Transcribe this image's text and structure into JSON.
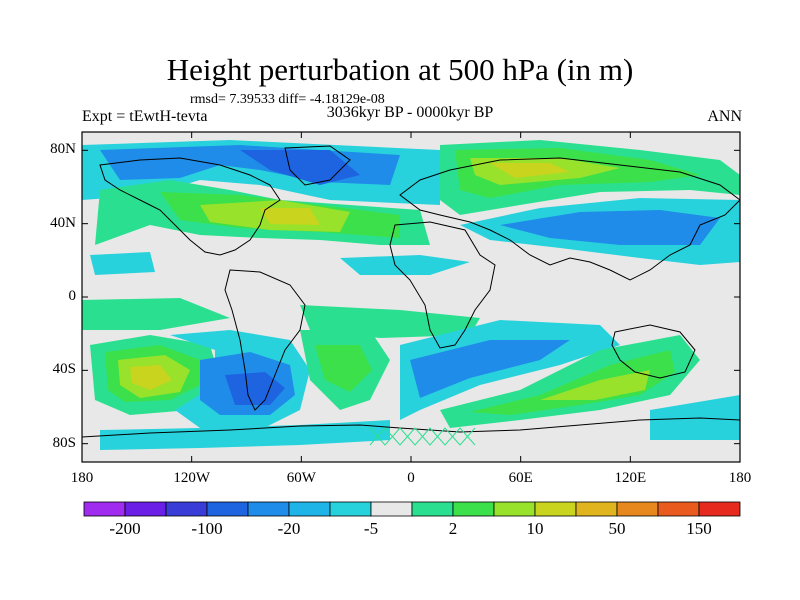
{
  "title": "Height perturbation at 500 hPa (in m)",
  "stats": "rmsd= 7.39533   diff= -4.18129e-08",
  "experiment": "Expt = tEwtH-tevta",
  "period": "3036kyr BP - 0000kyr BP",
  "season": "ANN",
  "lat_labels": [
    "80N",
    "40N",
    "0",
    "40S",
    "80S"
  ],
  "lon_labels": [
    "180",
    "120W",
    "60W",
    "0",
    "60E",
    "120E",
    "180"
  ],
  "colorbar": {
    "labels": [
      "-200",
      "-100",
      "-20",
      "-5",
      "2",
      "10",
      "50",
      "150"
    ],
    "colors": [
      "#a02cf0",
      "#6a1ee6",
      "#3a3cd8",
      "#1e64e0",
      "#1e8ce8",
      "#1eb4e8",
      "#28d2dc",
      "#e8e8e8",
      "#2ae090",
      "#3ce04a",
      "#98e22c",
      "#c8d41e",
      "#e0b41e",
      "#e6881e",
      "#e85a1e",
      "#e62a1e"
    ]
  },
  "colors": {
    "neutral": "#e8e8e8",
    "light_blue": "#28d2dc",
    "sky_blue": "#1eb4e8",
    "mid_blue": "#1e8ce8",
    "blue": "#1e64e0",
    "deep_blue": "#3a3cd8",
    "light_green": "#2ae090",
    "green": "#3ce04a",
    "yellow_green": "#98e22c",
    "olive": "#c8d41e",
    "orange": "#e0b41e"
  }
}
